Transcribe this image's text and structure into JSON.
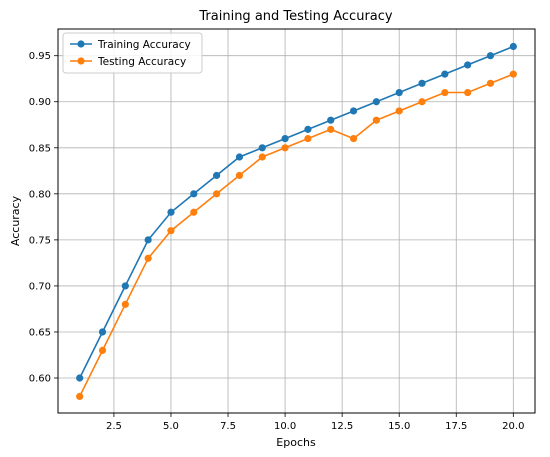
{
  "chart_data": {
    "type": "line",
    "title": "Training and Testing Accuracy",
    "xlabel": "Epochs",
    "ylabel": "Accuracy",
    "x": [
      1,
      2,
      3,
      4,
      5,
      6,
      7,
      8,
      9,
      10,
      11,
      12,
      13,
      14,
      15,
      16,
      17,
      18,
      19,
      20
    ],
    "series": [
      {
        "name": "Training Accuracy",
        "color": "#1f77b4",
        "values": [
          0.6,
          0.65,
          0.7,
          0.75,
          0.78,
          0.8,
          0.82,
          0.84,
          0.85,
          0.86,
          0.87,
          0.88,
          0.89,
          0.9,
          0.91,
          0.92,
          0.93,
          0.94,
          0.95,
          0.96
        ]
      },
      {
        "name": "Testing Accuracy",
        "color": "#ff7f0e",
        "values": [
          0.58,
          0.63,
          0.68,
          0.73,
          0.76,
          0.78,
          0.8,
          0.82,
          0.84,
          0.85,
          0.86,
          0.87,
          0.86,
          0.88,
          0.89,
          0.9,
          0.91,
          0.91,
          0.92,
          0.93
        ]
      }
    ],
    "xlim": [
      0.05,
      20.95
    ],
    "ylim": [
      0.562,
      0.979
    ],
    "xticks": [
      2.5,
      5.0,
      7.5,
      10.0,
      12.5,
      15.0,
      17.5,
      20.0
    ],
    "xtick_labels": [
      "2.5",
      "5.0",
      "7.5",
      "10.0",
      "12.5",
      "15.0",
      "17.5",
      "20.0"
    ],
    "yticks": [
      0.6,
      0.65,
      0.7,
      0.75,
      0.8,
      0.85,
      0.9,
      0.95
    ],
    "ytick_labels": [
      "0.60",
      "0.65",
      "0.70",
      "0.75",
      "0.80",
      "0.85",
      "0.90",
      "0.95"
    ],
    "grid": true,
    "legend_position": "top-left"
  }
}
